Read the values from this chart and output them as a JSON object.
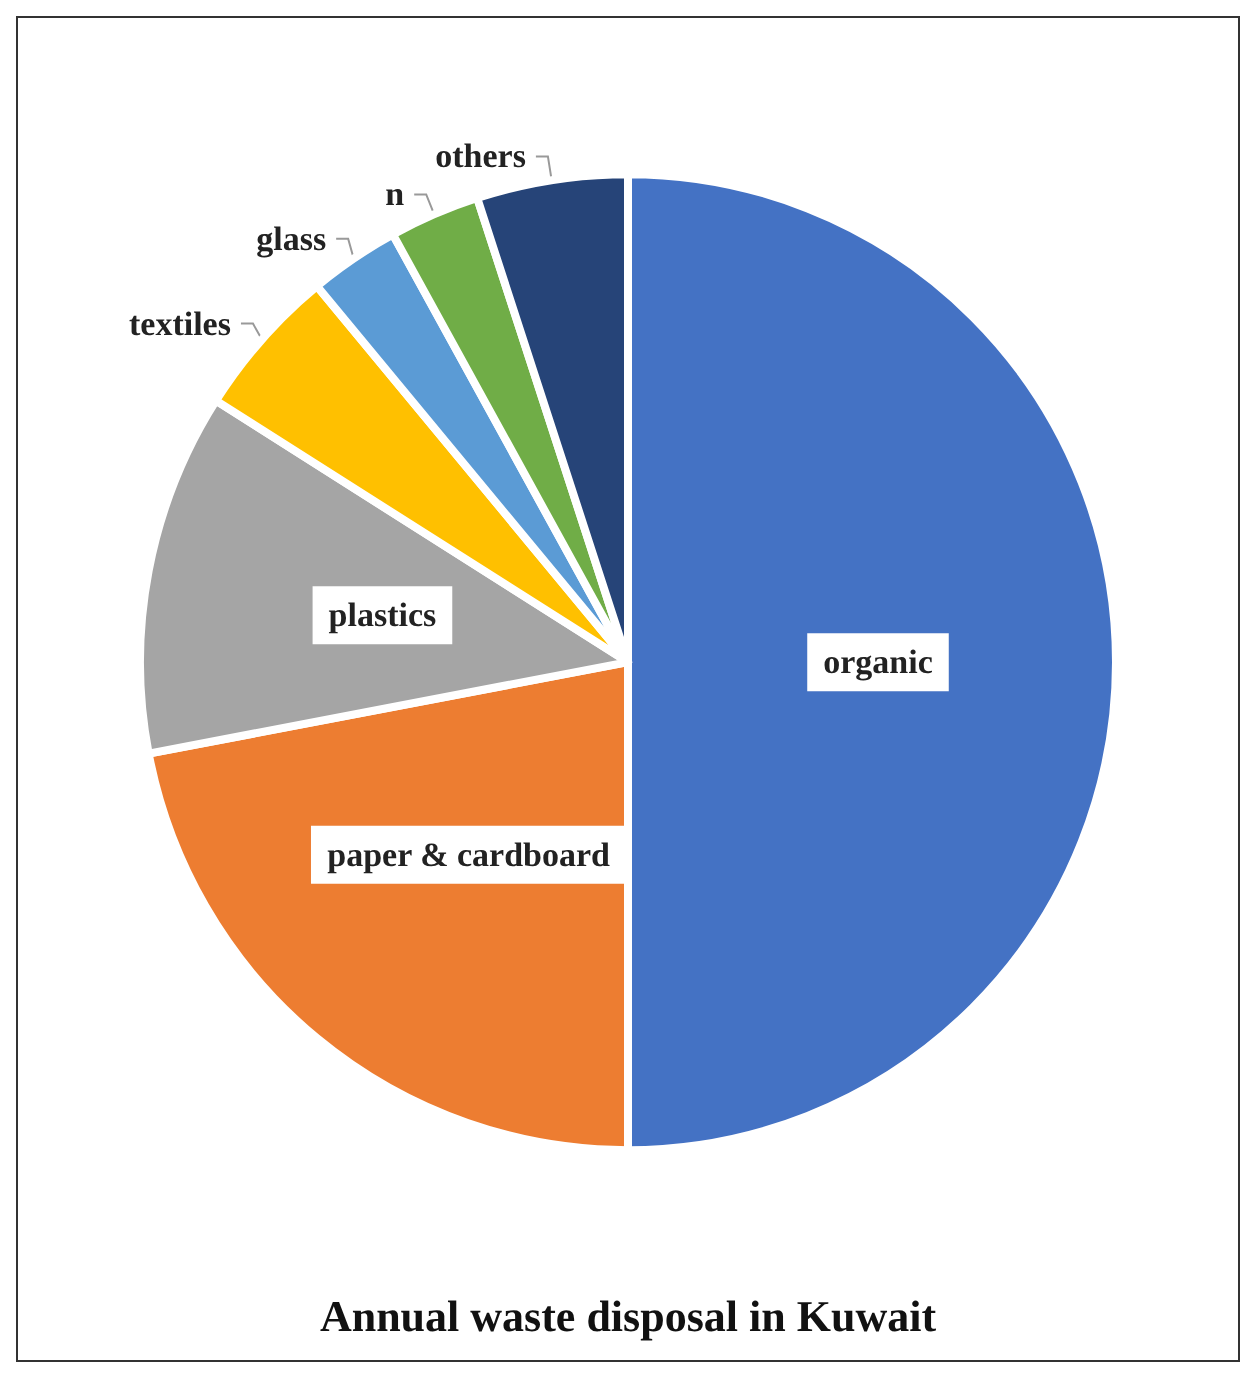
{
  "chart_data": {
    "type": "pie",
    "title": "Annual waste disposal in Kuwait",
    "categories": [
      "organic",
      "paper & cardboard",
      "plastics",
      "textiles",
      "glass",
      "n",
      "others"
    ],
    "values": [
      50,
      22,
      12,
      5,
      3,
      3,
      5
    ],
    "colors": [
      "#4472c4",
      "#ed7d31",
      "#a5a5a5",
      "#ffc000",
      "#5b9bd5",
      "#70ad47",
      "#264478"
    ],
    "legend": false
  }
}
